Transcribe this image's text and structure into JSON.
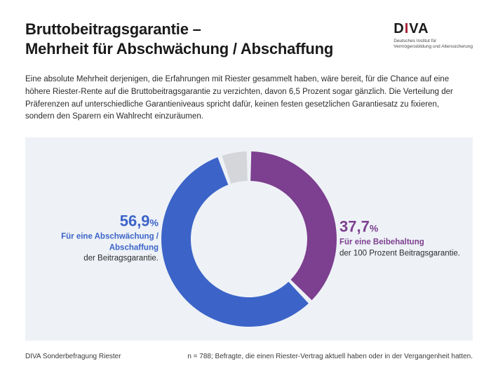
{
  "header": {
    "title_line1": "Bruttobeitragsgarantie –",
    "title_line2": "Mehrheit für Abschwächung / Abschaffung"
  },
  "logo": {
    "text": "DIVA",
    "subtitle_line1": "Deutsches Institut für",
    "subtitle_line2": "Vermögensbildung und Alterssicherung"
  },
  "intro": {
    "text": "Eine absolute Mehrheit derjenigen, die Erfahrungen mit Riester gesammelt haben, wäre bereit, für die Chance auf eine höhere Riester-Rente auf die Bruttobeitragsgarantie zu verzichten, davon 6,5 Prozent sogar gänzlich. Die Verteilung der Präferenzen auf unterschiedliche Garantieniveaus spricht dafür, keinen festen gesetzlichen Garantiesatz zu fixieren, sondern den Sparern ein Wahlrecht einzuräumen."
  },
  "chart": {
    "type": "donut",
    "background_color": "#eef2f7",
    "ring_thickness": 42,
    "outer_radius": 125,
    "center_hole_color": "#eef2f7",
    "gap_deg": 3,
    "start_angle_deg": -90,
    "slices": [
      {
        "key": "retain",
        "value": 37.7,
        "color": "#7d3f8f"
      },
      {
        "key": "weaken",
        "value": 56.9,
        "color": "#3C64C8"
      },
      {
        "key": "other",
        "value": 5.4,
        "color": "#d4d6da"
      }
    ]
  },
  "labels": {
    "left": {
      "pct_main": "56,9",
      "pct_unit": "%",
      "strong": "Für eine Abschwä­chung / Abschaffung",
      "plain": "der Beitragsgarantie.",
      "color": "#3C64C8"
    },
    "right": {
      "pct_main": "37,7",
      "pct_unit": "%",
      "strong": "Für eine Beibehaltung",
      "plain": "der 100 Prozent Beitragsgarantie.",
      "color": "#7d3f8f"
    }
  },
  "footer": {
    "left": "DIVA Sonderbefragung Riester",
    "right": "n = 788; Befragte, die einen Riester-Vertrag aktuell haben oder in der Vergangenheit hatten."
  }
}
